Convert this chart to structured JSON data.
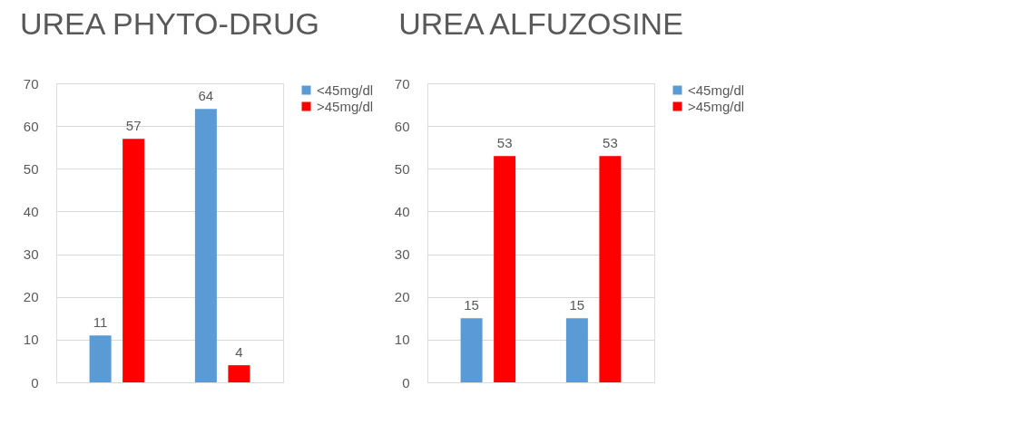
{
  "chart_data": [
    {
      "type": "bar",
      "title": "UREA PHYTO-DRUG",
      "categories": [
        null,
        null
      ],
      "series": [
        {
          "name": "<45mg/dl",
          "color": "#5b9bd5",
          "values": [
            11,
            64
          ]
        },
        {
          "name": ">45mg/dl",
          "color": "#ff0000",
          "values": [
            57,
            4
          ]
        }
      ],
      "ylim": [
        0,
        70
      ],
      "yticks": [
        0,
        10,
        20,
        30,
        40,
        50,
        60,
        70
      ],
      "grid": "y",
      "legend": "right",
      "data_labels": true
    },
    {
      "type": "bar",
      "title": "UREA ALFUZOSINE",
      "categories": [
        null,
        null
      ],
      "series": [
        {
          "name": "<45mg/dl",
          "color": "#5b9bd5",
          "values": [
            15,
            15
          ]
        },
        {
          "name": ">45mg/dl",
          "color": "#ff0000",
          "values": [
            53,
            53
          ]
        }
      ],
      "ylim": [
        0,
        70
      ],
      "yticks": [
        0,
        10,
        20,
        30,
        40,
        50,
        60,
        70
      ],
      "grid": "y",
      "legend": "right",
      "data_labels": true
    }
  ]
}
